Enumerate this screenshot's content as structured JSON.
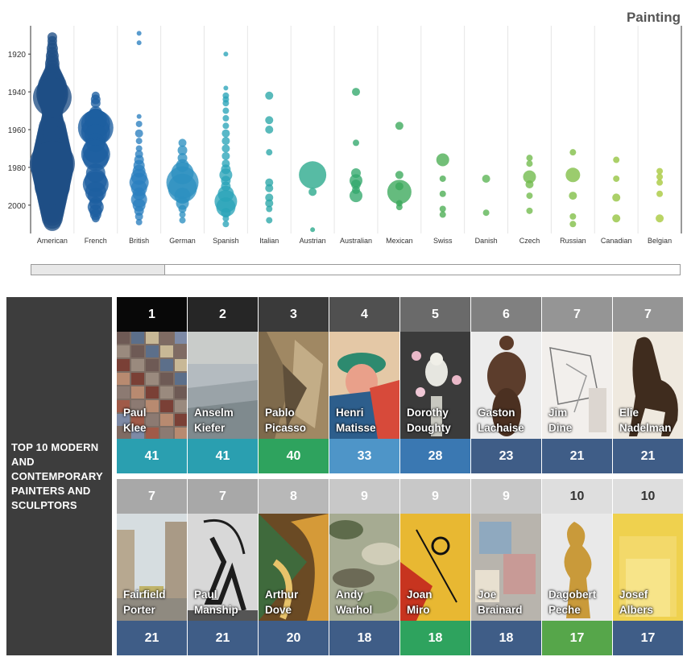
{
  "chart_data": {
    "type": "scatter",
    "title": "Painting",
    "y_ticks": [
      "1920",
      "1940",
      "1960",
      "1980",
      "2000"
    ],
    "ylim": [
      1905,
      2015
    ],
    "categories": [
      "American",
      "French",
      "British",
      "German",
      "Spanish",
      "Italian",
      "Austrian",
      "Australian",
      "Mexican",
      "Swiss",
      "Danish",
      "Czech",
      "Russian",
      "Canadian",
      "Belgian"
    ],
    "colors": [
      "#1f4e85",
      "#1e5fa0",
      "#2a7fbf",
      "#2c8fc0",
      "#2aa4b8",
      "#2aa7a8",
      "#28a88a",
      "#32a86c",
      "#3aa85a",
      "#4aad52",
      "#5ab452",
      "#6fba4a",
      "#7fbe44",
      "#93c33d",
      "#a6c83a"
    ],
    "points": [
      [
        [
          1911,
          6
        ],
        [
          1913,
          6
        ],
        [
          1915,
          6
        ],
        [
          1917,
          7
        ],
        [
          1919,
          7
        ],
        [
          1921,
          8
        ],
        [
          1923,
          8
        ],
        [
          1925,
          9
        ],
        [
          1927,
          9
        ],
        [
          1929,
          10
        ],
        [
          1931,
          12
        ],
        [
          1933,
          14
        ],
        [
          1935,
          16
        ],
        [
          1937,
          18
        ],
        [
          1939,
          19
        ],
        [
          1941,
          20
        ],
        [
          1943,
          19
        ],
        [
          1945,
          17
        ],
        [
          1947,
          15
        ],
        [
          1949,
          14
        ],
        [
          1951,
          13
        ],
        [
          1953,
          13
        ],
        [
          1955,
          14
        ],
        [
          1957,
          15
        ],
        [
          1959,
          17
        ],
        [
          1961,
          18
        ],
        [
          1963,
          19
        ],
        [
          1965,
          20
        ],
        [
          1967,
          21
        ],
        [
          1969,
          22
        ],
        [
          1971,
          23
        ],
        [
          1973,
          24
        ],
        [
          1975,
          25
        ],
        [
          1977,
          26
        ],
        [
          1979,
          26
        ],
        [
          1981,
          26
        ],
        [
          1983,
          25
        ],
        [
          1985,
          24
        ],
        [
          1987,
          23
        ],
        [
          1989,
          22
        ],
        [
          1991,
          21
        ],
        [
          1993,
          20
        ],
        [
          1995,
          19
        ],
        [
          1997,
          18
        ],
        [
          1999,
          17
        ],
        [
          2001,
          16
        ],
        [
          2003,
          15
        ],
        [
          2005,
          14
        ],
        [
          2007,
          13
        ],
        [
          2009,
          11
        ],
        [
          1943,
          24
        ],
        [
          1978,
          28
        ],
        [
          1990,
          22
        ]
      ],
      [
        [
          1942,
          5
        ],
        [
          1944,
          6
        ],
        [
          1946,
          6
        ],
        [
          1951,
          8
        ],
        [
          1953,
          10
        ],
        [
          1955,
          14
        ],
        [
          1957,
          18
        ],
        [
          1959,
          22
        ],
        [
          1961,
          18
        ],
        [
          1963,
          14
        ],
        [
          1967,
          12
        ],
        [
          1971,
          16
        ],
        [
          1973,
          18
        ],
        [
          1975,
          16
        ],
        [
          1983,
          12
        ],
        [
          1987,
          14
        ],
        [
          1989,
          16
        ],
        [
          1993,
          13
        ],
        [
          1995,
          10
        ],
        [
          1999,
          8
        ],
        [
          2001,
          10
        ],
        [
          2003,
          8
        ],
        [
          2005,
          7
        ],
        [
          2007,
          5
        ]
      ],
      [
        [
          1909,
          3
        ],
        [
          1914,
          3
        ],
        [
          1953,
          3
        ],
        [
          1957,
          4
        ],
        [
          1962,
          5
        ],
        [
          1966,
          4
        ],
        [
          1970,
          4
        ],
        [
          1973,
          5
        ],
        [
          1976,
          6
        ],
        [
          1979,
          7
        ],
        [
          1982,
          8
        ],
        [
          1985,
          10
        ],
        [
          1988,
          12
        ],
        [
          1991,
          10
        ],
        [
          1994,
          8
        ],
        [
          1997,
          10
        ],
        [
          2000,
          8
        ],
        [
          2003,
          6
        ],
        [
          2006,
          5
        ],
        [
          2009,
          4
        ]
      ],
      [
        [
          1967,
          5
        ],
        [
          1971,
          6
        ],
        [
          1975,
          6
        ],
        [
          1979,
          8
        ],
        [
          1983,
          14
        ],
        [
          1988,
          20
        ],
        [
          1991,
          18
        ],
        [
          1995,
          10
        ],
        [
          1999,
          8
        ],
        [
          2002,
          5
        ],
        [
          2005,
          4
        ],
        [
          2008,
          4
        ]
      ],
      [
        [
          1920,
          3
        ],
        [
          1938,
          3
        ],
        [
          1942,
          4
        ],
        [
          1944,
          4
        ],
        [
          1946,
          4
        ],
        [
          1950,
          4
        ],
        [
          1954,
          4
        ],
        [
          1958,
          4
        ],
        [
          1962,
          5
        ],
        [
          1966,
          5
        ],
        [
          1970,
          5
        ],
        [
          1974,
          5
        ],
        [
          1978,
          5
        ],
        [
          1981,
          6
        ],
        [
          1984,
          8
        ],
        [
          1987,
          6
        ],
        [
          1990,
          6
        ],
        [
          1994,
          10
        ],
        [
          1998,
          14
        ],
        [
          2001,
          12
        ],
        [
          2004,
          6
        ],
        [
          2007,
          4
        ],
        [
          2010,
          4
        ]
      ],
      [
        [
          1942,
          5
        ],
        [
          1955,
          5
        ],
        [
          1960,
          5
        ],
        [
          1972,
          4
        ],
        [
          1988,
          5
        ],
        [
          1991,
          5
        ],
        [
          1996,
          5
        ],
        [
          1999,
          5
        ],
        [
          2002,
          4
        ],
        [
          2008,
          4
        ]
      ],
      [
        [
          1984,
          17
        ],
        [
          1993,
          5
        ],
        [
          2013,
          3
        ]
      ],
      [
        [
          1940,
          5
        ],
        [
          1967,
          4
        ],
        [
          1983,
          6
        ],
        [
          1987,
          8
        ],
        [
          1989,
          6
        ],
        [
          1992,
          5
        ],
        [
          1995,
          8
        ]
      ],
      [
        [
          1958,
          5
        ],
        [
          1984,
          5
        ],
        [
          1990,
          5
        ],
        [
          1993,
          15
        ],
        [
          1999,
          4
        ],
        [
          2001,
          4
        ]
      ],
      [
        [
          1976,
          8
        ],
        [
          1986,
          4
        ],
        [
          1994,
          4
        ],
        [
          2002,
          4
        ],
        [
          2005,
          4
        ]
      ],
      [
        [
          1986,
          5
        ],
        [
          2004,
          4
        ]
      ],
      [
        [
          1975,
          4
        ],
        [
          1978,
          4
        ],
        [
          1985,
          8
        ],
        [
          1989,
          5
        ],
        [
          1995,
          4
        ],
        [
          2003,
          4
        ]
      ],
      [
        [
          1972,
          4
        ],
        [
          1984,
          9
        ],
        [
          1995,
          5
        ],
        [
          2006,
          4
        ],
        [
          2010,
          4
        ]
      ],
      [
        [
          1976,
          4
        ],
        [
          1986,
          4
        ],
        [
          1996,
          5
        ],
        [
          2007,
          5
        ]
      ],
      [
        [
          1982,
          4
        ],
        [
          1985,
          4
        ],
        [
          1988,
          4
        ],
        [
          1994,
          4
        ],
        [
          2007,
          5
        ]
      ]
    ]
  },
  "scrollbar": {
    "label": "scroll"
  },
  "side_panel": {
    "title": "TOP 10 MODERN AND CONTEMPORARY PAINTERS AND SCULPTORS"
  },
  "artists": [
    {
      "rank": "1",
      "name": "Paul\nKlee",
      "count": "41",
      "rank_bg": "#080808",
      "rank_fg": "#ffffff",
      "count_bg": "#2a9fb0",
      "pic": "grid"
    },
    {
      "rank": "2",
      "name": "Anselm\nKiefer",
      "count": "41",
      "rank_bg": "#262626",
      "rank_fg": "#ffffff",
      "count_bg": "#2a9fb0",
      "pic": "sky"
    },
    {
      "rank": "3",
      "name": "Pablo\nPicasso",
      "count": "40",
      "rank_bg": "#3a3a3a",
      "rank_fg": "#ffffff",
      "count_bg": "#2ea35e",
      "pic": "cubist"
    },
    {
      "rank": "4",
      "name": "Henri\nMatisse",
      "count": "33",
      "rank_bg": "#505050",
      "rank_fg": "#ffffff",
      "count_bg": "#4e95c8",
      "pic": "portrait"
    },
    {
      "rank": "5",
      "name": "Dorothy\nDoughty",
      "count": "28",
      "rank_bg": "#6a6a6a",
      "rank_fg": "#ffffff",
      "count_bg": "#3a78b2",
      "pic": "bird"
    },
    {
      "rank": "6",
      "name": "Gaston\nLachaise",
      "count": "23",
      "rank_bg": "#808080",
      "rank_fg": "#ffffff",
      "count_bg": "#3f5d87",
      "pic": "bronze"
    },
    {
      "rank": "7",
      "name": "Jim\nDine",
      "count": "21",
      "rank_bg": "#959595",
      "rank_fg": "#ffffff",
      "count_bg": "#3f5d87",
      "pic": "sketch"
    },
    {
      "rank": "7",
      "name": "Elie\nNadelman",
      "count": "21",
      "rank_bg": "#959595",
      "rank_fg": "#ffffff",
      "count_bg": "#3f5d87",
      "pic": "horse"
    },
    {
      "rank": "7",
      "name": "Fairfield\nPorter",
      "count": "21",
      "rank_bg": "#a8a8a8",
      "rank_fg": "#ffffff",
      "count_bg": "#3f5d87",
      "pic": "street"
    },
    {
      "rank": "7",
      "name": "Paul\nManship",
      "count": "21",
      "rank_bg": "#a8a8a8",
      "rank_fg": "#ffffff",
      "count_bg": "#3f5d87",
      "pic": "archer"
    },
    {
      "rank": "8",
      "name": "Arthur\nDove",
      "count": "20",
      "rank_bg": "#b8b8b8",
      "rank_fg": "#ffffff",
      "count_bg": "#3f5d87",
      "pic": "dove"
    },
    {
      "rank": "9",
      "name": "Andy\nWarhol",
      "count": "18",
      "rank_bg": "#c8c8c8",
      "rank_fg": "#ffffff",
      "count_bg": "#3f5d87",
      "pic": "camo"
    },
    {
      "rank": "9",
      "name": "Joan\nMiro",
      "count": "18",
      "rank_bg": "#c8c8c8",
      "rank_fg": "#ffffff",
      "count_bg": "#2ea35e",
      "pic": "miro"
    },
    {
      "rank": "9",
      "name": "Joe\nBrainard",
      "count": "18",
      "rank_bg": "#c8c8c8",
      "rank_fg": "#ffffff",
      "count_bg": "#3f5d87",
      "pic": "collage"
    },
    {
      "rank": "10",
      "name": "Dagobert\nPeche",
      "count": "17",
      "rank_bg": "#dedede",
      "rank_fg": "#333333",
      "count_bg": "#56a64a",
      "pic": "gold"
    },
    {
      "rank": "10",
      "name": "Josef\nAlbers",
      "count": "17",
      "rank_bg": "#dedede",
      "rank_fg": "#333333",
      "count_bg": "#3f5d87",
      "pic": "albers"
    }
  ]
}
